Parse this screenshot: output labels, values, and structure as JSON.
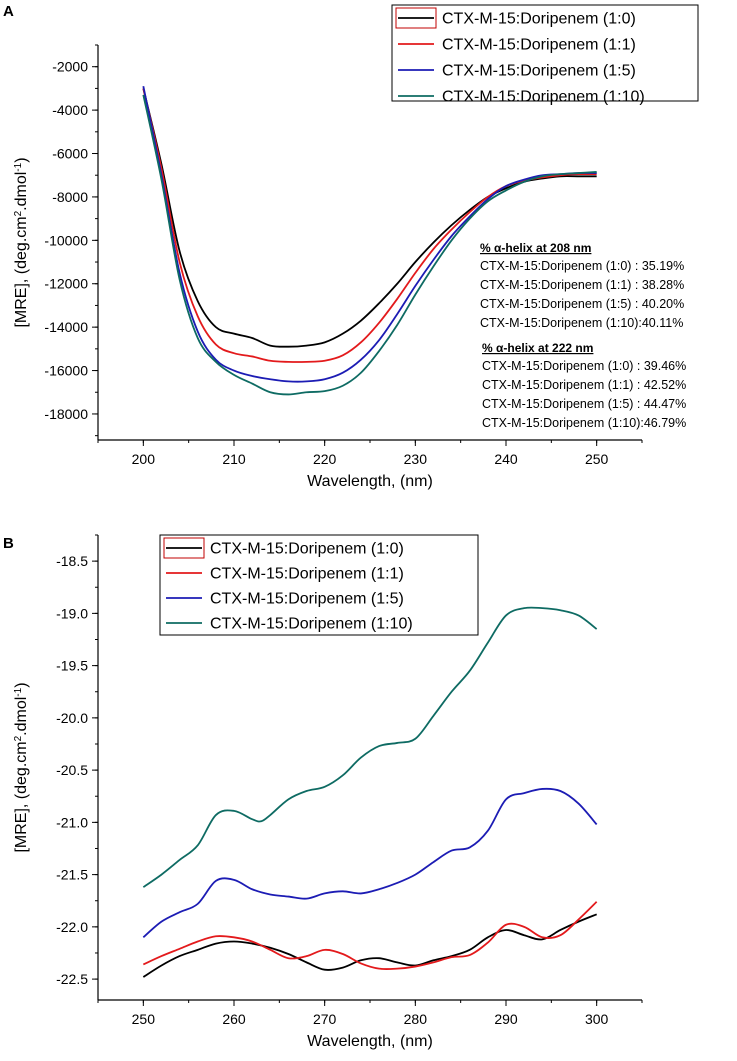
{
  "chart_data": [
    {
      "panel": "A",
      "type": "line",
      "xlabel": "Wavelength, (nm)",
      "ylabel_main": "[MRE], (deg.cm",
      "ylabel_sup1": "2",
      "ylabel_mid": ".dmol",
      "ylabel_sup2": "-1",
      "ylabel_end": ")",
      "xlim": [
        195,
        255
      ],
      "ylim": [
        -19200,
        -1000
      ],
      "xticks": [
        200,
        210,
        220,
        230,
        240,
        250
      ],
      "yticks": [
        -2000,
        -4000,
        -6000,
        -8000,
        -10000,
        -12000,
        -14000,
        -16000,
        -18000
      ],
      "legend_position": "top-right",
      "series": [
        {
          "name": "CTX-M-15:Doripenem (1:0)",
          "color": "#000000",
          "points": [
            [
              200,
              -3000
            ],
            [
              202,
              -6500
            ],
            [
              204,
              -10500
            ],
            [
              206,
              -12800
            ],
            [
              208,
              -14000
            ],
            [
              210,
              -14300
            ],
            [
              212,
              -14500
            ],
            [
              214,
              -14850
            ],
            [
              216,
              -14900
            ],
            [
              218,
              -14850
            ],
            [
              220,
              -14700
            ],
            [
              222,
              -14300
            ],
            [
              224,
              -13700
            ],
            [
              226,
              -12900
            ],
            [
              228,
              -12000
            ],
            [
              230,
              -11000
            ],
            [
              232,
              -10100
            ],
            [
              234,
              -9300
            ],
            [
              236,
              -8600
            ],
            [
              238,
              -8000
            ],
            [
              240,
              -7600
            ],
            [
              242,
              -7300
            ],
            [
              244,
              -7150
            ],
            [
              246,
              -7050
            ],
            [
              248,
              -7050
            ],
            [
              250,
              -7050
            ]
          ]
        },
        {
          "name": "CTX-M-15:Doripenem (1:1)",
          "color": "#e31a1c",
          "points": [
            [
              200,
              -3000
            ],
            [
              202,
              -6700
            ],
            [
              204,
              -11000
            ],
            [
              206,
              -13500
            ],
            [
              208,
              -14800
            ],
            [
              210,
              -15200
            ],
            [
              212,
              -15350
            ],
            [
              214,
              -15550
            ],
            [
              216,
              -15600
            ],
            [
              218,
              -15600
            ],
            [
              220,
              -15550
            ],
            [
              222,
              -15300
            ],
            [
              224,
              -14700
            ],
            [
              226,
              -13800
            ],
            [
              228,
              -12700
            ],
            [
              230,
              -11500
            ],
            [
              232,
              -10400
            ],
            [
              234,
              -9500
            ],
            [
              236,
              -8700
            ],
            [
              238,
              -8000
            ],
            [
              240,
              -7500
            ],
            [
              242,
              -7250
            ],
            [
              244,
              -7100
            ],
            [
              246,
              -7000
            ],
            [
              248,
              -6950
            ],
            [
              250,
              -6950
            ]
          ]
        },
        {
          "name": "CTX-M-15:Doripenem (1:5)",
          "color": "#1c1cb4",
          "points": [
            [
              200,
              -2900
            ],
            [
              202,
              -7000
            ],
            [
              204,
              -11500
            ],
            [
              206,
              -14200
            ],
            [
              208,
              -15500
            ],
            [
              210,
              -16000
            ],
            [
              212,
              -16250
            ],
            [
              214,
              -16400
            ],
            [
              216,
              -16500
            ],
            [
              218,
              -16500
            ],
            [
              220,
              -16400
            ],
            [
              222,
              -16100
            ],
            [
              224,
              -15500
            ],
            [
              226,
              -14600
            ],
            [
              228,
              -13400
            ],
            [
              230,
              -12100
            ],
            [
              232,
              -10900
            ],
            [
              234,
              -9800
            ],
            [
              236,
              -8900
            ],
            [
              238,
              -8100
            ],
            [
              240,
              -7500
            ],
            [
              242,
              -7200
            ],
            [
              244,
              -7000
            ],
            [
              246,
              -6950
            ],
            [
              248,
              -6900
            ],
            [
              250,
              -6900
            ]
          ]
        },
        {
          "name": "CTX-M-15:Doripenem (1:10)",
          "color": "#0e6b63",
          "points": [
            [
              200,
              -3300
            ],
            [
              202,
              -7200
            ],
            [
              204,
              -11800
            ],
            [
              206,
              -14500
            ],
            [
              208,
              -15600
            ],
            [
              210,
              -16200
            ],
            [
              212,
              -16600
            ],
            [
              214,
              -17000
            ],
            [
              216,
              -17100
            ],
            [
              218,
              -17000
            ],
            [
              220,
              -16950
            ],
            [
              222,
              -16700
            ],
            [
              224,
              -16100
            ],
            [
              226,
              -15100
            ],
            [
              228,
              -13900
            ],
            [
              230,
              -12500
            ],
            [
              232,
              -11200
            ],
            [
              234,
              -10000
            ],
            [
              236,
              -9000
            ],
            [
              238,
              -8200
            ],
            [
              240,
              -7700
            ],
            [
              242,
              -7300
            ],
            [
              244,
              -7050
            ],
            [
              246,
              -6950
            ],
            [
              248,
              -6900
            ],
            [
              250,
              -6850
            ]
          ]
        }
      ],
      "annotations": {
        "helix_208_title": "% α-helix at 208 nm",
        "helix_208": [
          "CTX-M-15:Doripenem (1:0) : 35.19%",
          "CTX-M-15:Doripenem (1:1) : 38.28%",
          "CTX-M-15:Doripenem (1:5) : 40.20%",
          "CTX-M-15:Doripenem (1:10):40.11%"
        ],
        "helix_222_title": "% α-helix at 222 nm",
        "helix_222": [
          "CTX-M-15:Doripenem (1:0) : 39.46%",
          "CTX-M-15:Doripenem (1:1) : 42.52%",
          "CTX-M-15:Doripenem (1:5) : 44.47%",
          "CTX-M-15:Doripenem (1:10):46.79%"
        ]
      }
    },
    {
      "panel": "B",
      "type": "line",
      "xlabel": "Wavelength, (nm)",
      "ylabel_main": "[MRE], (deg.cm",
      "ylabel_sup1": "2",
      "ylabel_mid": ".dmol",
      "ylabel_sup2": "-1",
      "ylabel_end": ")",
      "xlim": [
        245,
        305
      ],
      "ylim": [
        -22.7,
        -18.25
      ],
      "xticks": [
        250,
        260,
        270,
        280,
        290,
        300
      ],
      "yticks": [
        -18.5,
        -19.0,
        -19.5,
        -20.0,
        -20.5,
        -21.0,
        -21.5,
        -22.0,
        -22.5
      ],
      "legend_position": "top-left",
      "series": [
        {
          "name": "CTX-M-15:Doripenem (1:0)",
          "color": "#000000",
          "points": [
            [
              250,
              -22.48
            ],
            [
              252,
              -22.37
            ],
            [
              254,
              -22.28
            ],
            [
              256,
              -22.22
            ],
            [
              258,
              -22.16
            ],
            [
              260,
              -22.14
            ],
            [
              262,
              -22.16
            ],
            [
              264,
              -22.2
            ],
            [
              266,
              -22.26
            ],
            [
              268,
              -22.34
            ],
            [
              270,
              -22.41
            ],
            [
              272,
              -22.39
            ],
            [
              274,
              -22.32
            ],
            [
              276,
              -22.3
            ],
            [
              278,
              -22.34
            ],
            [
              280,
              -22.37
            ],
            [
              282,
              -22.32
            ],
            [
              284,
              -22.28
            ],
            [
              286,
              -22.22
            ],
            [
              288,
              -22.1
            ],
            [
              290,
              -22.03
            ],
            [
              292,
              -22.08
            ],
            [
              294,
              -22.12
            ],
            [
              296,
              -22.03
            ],
            [
              298,
              -21.95
            ],
            [
              300,
              -21.88
            ]
          ]
        },
        {
          "name": "CTX-M-15:Doripenem (1:1)",
          "color": "#e31a1c",
          "points": [
            [
              250,
              -22.36
            ],
            [
              252,
              -22.28
            ],
            [
              254,
              -22.21
            ],
            [
              256,
              -22.14
            ],
            [
              258,
              -22.09
            ],
            [
              260,
              -22.1
            ],
            [
              262,
              -22.14
            ],
            [
              264,
              -22.22
            ],
            [
              266,
              -22.3
            ],
            [
              268,
              -22.28
            ],
            [
              270,
              -22.22
            ],
            [
              272,
              -22.26
            ],
            [
              274,
              -22.35
            ],
            [
              276,
              -22.4
            ],
            [
              278,
              -22.4
            ],
            [
              280,
              -22.38
            ],
            [
              282,
              -22.34
            ],
            [
              284,
              -22.29
            ],
            [
              286,
              -22.27
            ],
            [
              288,
              -22.15
            ],
            [
              290,
              -21.98
            ],
            [
              292,
              -22.0
            ],
            [
              294,
              -22.1
            ],
            [
              296,
              -22.08
            ],
            [
              298,
              -21.93
            ],
            [
              300,
              -21.76
            ]
          ]
        },
        {
          "name": "CTX-M-15:Doripenem (1:5)",
          "color": "#1c1cb4",
          "points": [
            [
              250,
              -22.1
            ],
            [
              252,
              -21.95
            ],
            [
              254,
              -21.86
            ],
            [
              256,
              -21.78
            ],
            [
              258,
              -21.56
            ],
            [
              260,
              -21.55
            ],
            [
              262,
              -21.64
            ],
            [
              264,
              -21.69
            ],
            [
              266,
              -21.71
            ],
            [
              268,
              -21.73
            ],
            [
              270,
              -21.68
            ],
            [
              272,
              -21.66
            ],
            [
              274,
              -21.68
            ],
            [
              276,
              -21.64
            ],
            [
              278,
              -21.58
            ],
            [
              280,
              -21.5
            ],
            [
              282,
              -21.38
            ],
            [
              284,
              -21.27
            ],
            [
              286,
              -21.24
            ],
            [
              288,
              -21.08
            ],
            [
              290,
              -20.78
            ],
            [
              292,
              -20.72
            ],
            [
              294,
              -20.68
            ],
            [
              296,
              -20.7
            ],
            [
              298,
              -20.82
            ],
            [
              300,
              -21.02
            ]
          ]
        },
        {
          "name": "CTX-M-15:Doripenem (1:10)",
          "color": "#0e6b63",
          "points": [
            [
              250,
              -21.62
            ],
            [
              252,
              -21.5
            ],
            [
              254,
              -21.36
            ],
            [
              256,
              -21.22
            ],
            [
              258,
              -20.93
            ],
            [
              260,
              -20.89
            ],
            [
              262,
              -20.97
            ],
            [
              263,
              -20.99
            ],
            [
              264,
              -20.93
            ],
            [
              266,
              -20.78
            ],
            [
              268,
              -20.7
            ],
            [
              270,
              -20.66
            ],
            [
              272,
              -20.55
            ],
            [
              274,
              -20.38
            ],
            [
              276,
              -20.27
            ],
            [
              278,
              -20.24
            ],
            [
              280,
              -20.2
            ],
            [
              282,
              -19.98
            ],
            [
              284,
              -19.75
            ],
            [
              286,
              -19.55
            ],
            [
              288,
              -19.28
            ],
            [
              290,
              -19.02
            ],
            [
              292,
              -18.95
            ],
            [
              294,
              -18.95
            ],
            [
              296,
              -18.97
            ],
            [
              298,
              -19.02
            ],
            [
              300,
              -19.15
            ]
          ]
        }
      ]
    }
  ]
}
